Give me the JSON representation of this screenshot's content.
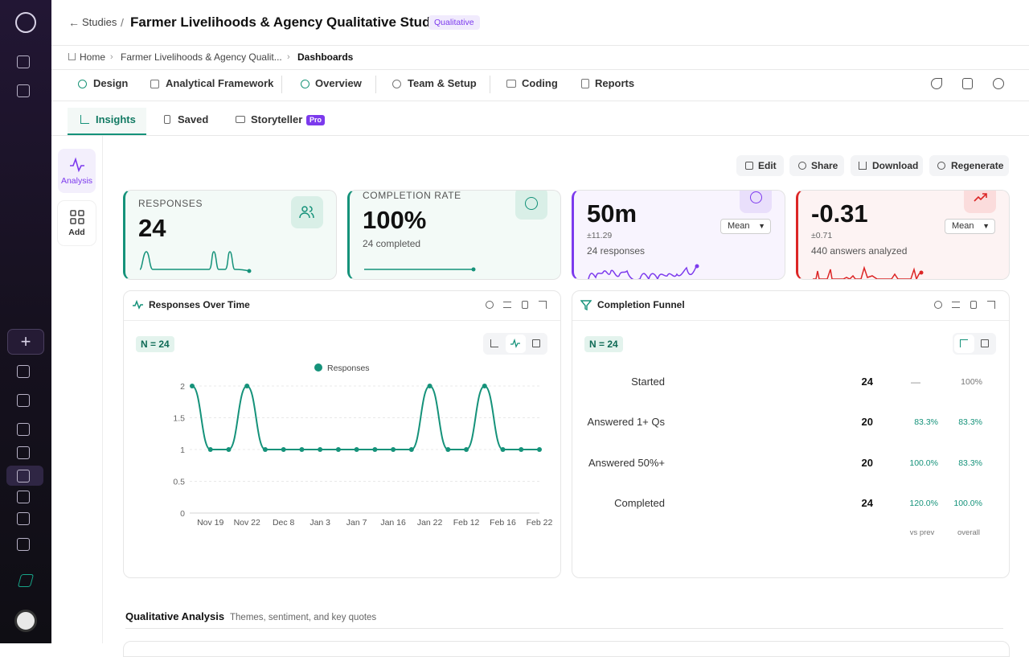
{
  "header": {
    "back": "Studies",
    "separator": "/",
    "title": "Farmer Livelihoods & Agency Qualitative Study",
    "badge": "Qualitative"
  },
  "breadcrumb": [
    "Home",
    "Farmer Livelihoods & Agency Qualit...",
    "Dashboards"
  ],
  "nav": [
    "Design",
    "Analytical Framework",
    "Overview",
    "Team & Setup",
    "Coding",
    "Reports"
  ],
  "tabs": [
    "Insights",
    "Saved",
    "Storyteller"
  ],
  "tab_badge": "Pro",
  "tools": [
    "Analysis",
    "Add"
  ],
  "actions": [
    "Edit",
    "Share",
    "Download",
    "Regenerate"
  ],
  "kpis": [
    {
      "label": "RESPONSES",
      "value": "24"
    },
    {
      "label": "COMPLETION RATE",
      "value": "100%",
      "note": "24 completed"
    },
    {
      "value": "50m",
      "error": "±11.29",
      "note": "24 responses",
      "select": "Mean"
    },
    {
      "value": "-0.31",
      "error": "±0.71",
      "note": "440 answers analyzed",
      "select": "Mean"
    }
  ],
  "chart_data": {
    "type": "line",
    "title": "Responses Over Time",
    "n_label": "N = 24",
    "categories": [
      null,
      "Nov 19",
      null,
      "Nov 22",
      null,
      "Dec 8",
      null,
      "Jan 3",
      null,
      "Jan 7",
      null,
      "Jan 16",
      null,
      "Jan 22",
      null,
      "Feb 12",
      null,
      "Feb 16",
      null,
      "Feb 22"
    ],
    "series": [
      {
        "name": "Responses",
        "color": "#15927a",
        "values": [
          2,
          1,
          1,
          2,
          1,
          1,
          1,
          1,
          1,
          1,
          1,
          1,
          1,
          2,
          1,
          1,
          2,
          1,
          1,
          1
        ]
      }
    ],
    "ylim": [
      0,
      2
    ],
    "yticks": [
      0,
      0.5,
      1,
      1.5,
      2
    ],
    "grid": true
  },
  "funnel": {
    "title": "Completion Funnel",
    "n_label": "N = 24",
    "rows": [
      [
        "Started",
        "24",
        "—",
        "100%"
      ],
      [
        "Answered 1+ Qs",
        "20",
        "83.3%",
        "83.3%"
      ],
      [
        "Answered 50%+",
        "20",
        "100.0%",
        "83.3%"
      ],
      [
        "Completed",
        "24",
        "120.0%",
        "100.0%"
      ]
    ],
    "footer": [
      "vs prev",
      "overall"
    ]
  },
  "section": {
    "title": "Qualitative Analysis",
    "subtitle": "Themes, sentiment, and key quotes"
  }
}
